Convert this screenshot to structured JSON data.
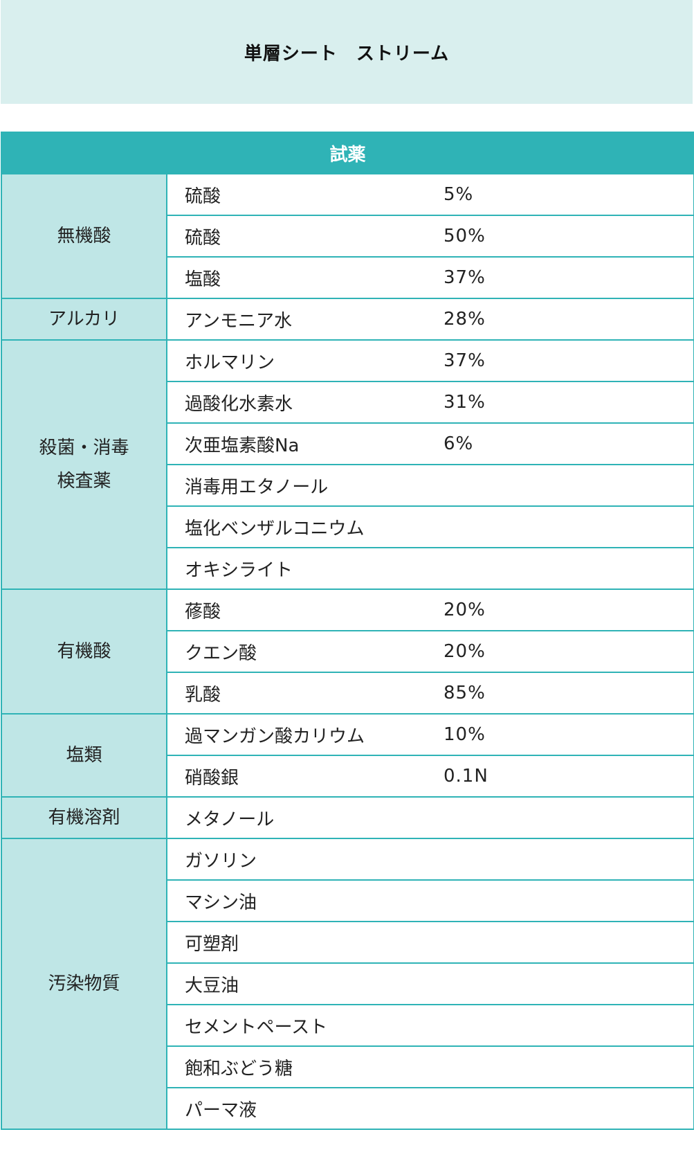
{
  "title": "単層シート　ストリーム",
  "table": {
    "header": "試薬",
    "groups": [
      {
        "category": [
          "無機酸"
        ],
        "items": [
          {
            "name": "硫酸",
            "conc": "5%"
          },
          {
            "name": "硫酸",
            "conc": "50%"
          },
          {
            "name": "塩酸",
            "conc": "37%"
          }
        ]
      },
      {
        "category": [
          "アルカリ"
        ],
        "items": [
          {
            "name": "アンモニア水",
            "conc": "28%"
          }
        ]
      },
      {
        "category": [
          "殺菌・消毒",
          "検査薬"
        ],
        "items": [
          {
            "name": "ホルマリン",
            "conc": "37%"
          },
          {
            "name": "過酸化水素水",
            "conc": "31%"
          },
          {
            "name": "次亜塩素酸Na",
            "conc": "6%"
          },
          {
            "name": "消毒用エタノール",
            "conc": ""
          },
          {
            "name": "塩化ベンザルコニウム",
            "conc": ""
          },
          {
            "name": "オキシライト",
            "conc": ""
          }
        ]
      },
      {
        "category": [
          "有機酸"
        ],
        "items": [
          {
            "name": "蓚酸",
            "conc": "20%"
          },
          {
            "name": "クエン酸",
            "conc": "20%"
          },
          {
            "name": "乳酸",
            "conc": "85%"
          }
        ]
      },
      {
        "category": [
          "塩類"
        ],
        "items": [
          {
            "name": "過マンガン酸カリウム",
            "conc": "10%"
          },
          {
            "name": "硝酸銀",
            "conc": "0.1N"
          }
        ]
      },
      {
        "category": [
          "有機溶剤"
        ],
        "items": [
          {
            "name": "メタノール",
            "conc": ""
          }
        ]
      },
      {
        "category": [
          "汚染物質"
        ],
        "items": [
          {
            "name": "ガソリン",
            "conc": ""
          },
          {
            "name": "マシン油",
            "conc": ""
          },
          {
            "name": "可塑剤",
            "conc": ""
          },
          {
            "name": "大豆油",
            "conc": ""
          },
          {
            "name": "セメントペースト",
            "conc": ""
          },
          {
            "name": "飽和ぶどう糖",
            "conc": ""
          },
          {
            "name": "パーマ液",
            "conc": ""
          }
        ]
      }
    ]
  },
  "colors": {
    "title_background": "#d9efee",
    "header_background": "#2fb3b6",
    "category_background": "#bfe6e6",
    "border": "#2fb3b6"
  }
}
